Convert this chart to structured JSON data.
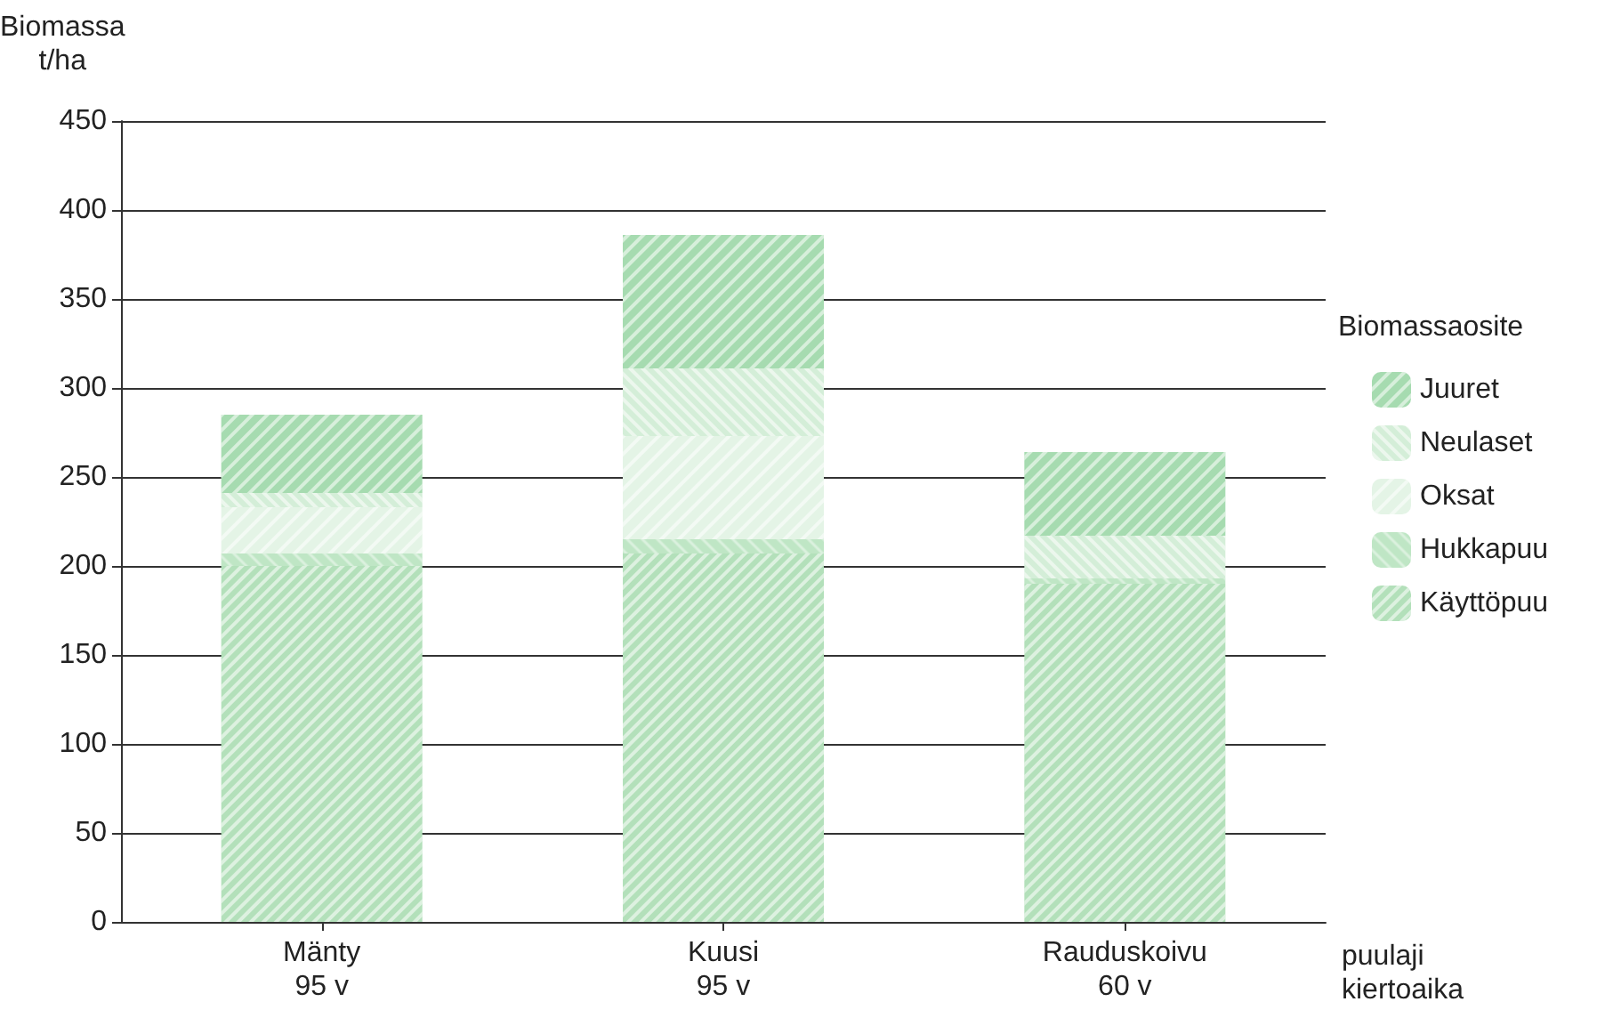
{
  "chart_data": {
    "type": "bar",
    "stacked": true,
    "ylabel": "Biomassa\nt/ha",
    "xlabel": "puulaji\nkiertoaika",
    "legend_title": "Biomassaosite",
    "legend": "right",
    "categories": [
      "Mänty\n95 v",
      "Kuusi\n95 v",
      "Rauduskoivu\n60 v"
    ],
    "series": [
      {
        "name": "Käyttöpuu",
        "color": "#b3e0ba",
        "values": [
          200,
          207,
          190
        ]
      },
      {
        "name": "Hukkapuu",
        "color": "#bfe6c5",
        "values": [
          7,
          8,
          3
        ]
      },
      {
        "name": "Oksat",
        "color": "#e4f4e6",
        "values": [
          26,
          58,
          0
        ]
      },
      {
        "name": "Neulaset",
        "color": "#d4eed8",
        "values": [
          8,
          38,
          24
        ]
      },
      {
        "name": "Juuret",
        "color": "#a6dbb0",
        "values": [
          44,
          75,
          47
        ]
      }
    ],
    "ylim": [
      0,
      450
    ],
    "yticks": [
      0,
      50,
      100,
      150,
      200,
      250,
      300,
      350,
      400,
      450
    ],
    "grid": "y"
  }
}
